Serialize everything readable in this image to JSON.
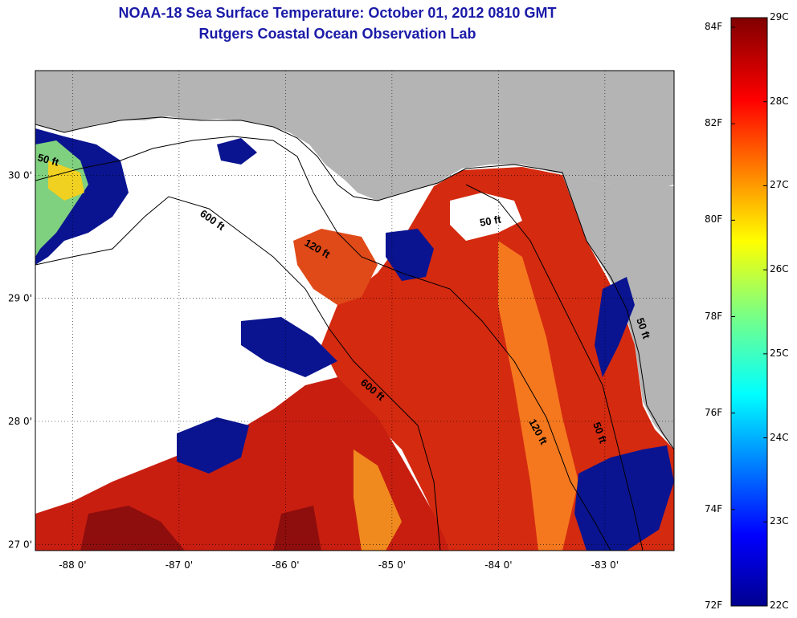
{
  "title": "NOAA-18 Sea Surface Temperature:  October 01, 2012 0810 GMT",
  "subtitle": "Rutgers Coastal Ocean Observation Lab",
  "map": {
    "lon_ticks": [
      "-88 0'",
      "-87 0'",
      "-86 0'",
      "-85 0'",
      "-84 0'",
      "-83 0'"
    ],
    "lat_ticks": [
      "30 0'",
      "29 0'",
      "28 0'",
      "27 0'"
    ],
    "lon_range": [
      -88.35,
      -82.35
    ],
    "lat_range": [
      26.95,
      30.85
    ],
    "contour_labels": [
      "50 ft",
      "600 ft",
      "120 ft",
      "50 ft",
      "600 ft",
      "120 ft",
      "50 ft",
      "50 ft"
    ],
    "colors": {
      "land": "#b4b4b4",
      "cloud": "#ffffff",
      "cold": "#00008b",
      "warm": "#b40000"
    }
  },
  "colorbar": {
    "celsius": [
      "29C",
      "28C",
      "27C",
      "26C",
      "25C",
      "24C",
      "23C",
      "22C"
    ],
    "fahrenheit": [
      "84F",
      "82F",
      "80F",
      "78F",
      "76F",
      "74F",
      "72F"
    ],
    "c_range": [
      22,
      29
    ],
    "f_range": [
      72,
      84.2
    ]
  }
}
